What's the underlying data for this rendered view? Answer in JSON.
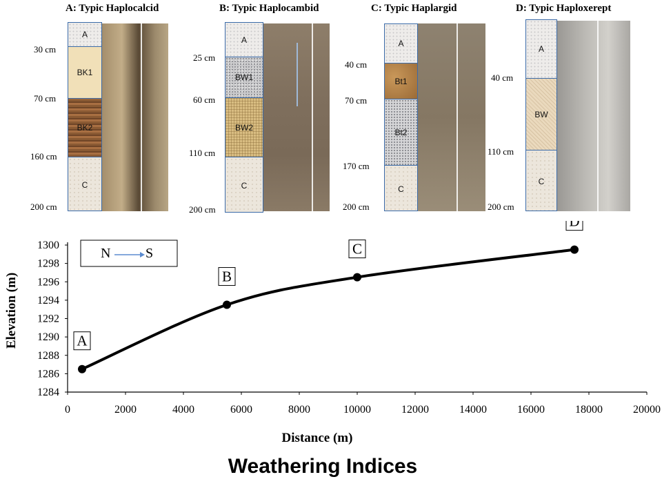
{
  "profiles": [
    {
      "title": "A: Typic Haplocalcid",
      "depths": [
        "30 cm",
        "70 cm",
        "160 cm",
        "200 cm"
      ],
      "horizons": [
        "A",
        "BK1",
        "BK2",
        "C"
      ],
      "photo_tone": "#8c7a5c"
    },
    {
      "title": "B:  Typic Haplocambid",
      "depths": [
        "25 cm",
        "60 cm",
        "110 cm",
        "200 cm"
      ],
      "horizons": [
        "A",
        "BW1",
        "BW2",
        "C"
      ],
      "photo_tone": "#7f6f5e"
    },
    {
      "title": "C:  Typic Haplargid",
      "depths": [
        "40 cm",
        "70 cm",
        "170 cm",
        "200 cm"
      ],
      "horizons": [
        "A",
        "Bt1",
        "Bt2",
        "C"
      ],
      "photo_tone": "#8d7f6c"
    },
    {
      "title": "D:  Typic Haploxerept",
      "depths": [
        "40 cm",
        "110 cm",
        "200 cm"
      ],
      "horizons": [
        "A",
        "BW",
        "C"
      ],
      "photo_tone": "#a5a39f"
    }
  ],
  "chart_data": {
    "type": "line",
    "xlabel": "Distance (m)",
    "ylabel": "Elevation (m)",
    "xlim": [
      0,
      20000
    ],
    "ylim": [
      1284,
      1300
    ],
    "xticks": [
      0,
      2000,
      4000,
      6000,
      8000,
      10000,
      12000,
      14000,
      16000,
      18000,
      20000
    ],
    "yticks": [
      1284,
      1286,
      1288,
      1290,
      1292,
      1294,
      1296,
      1298,
      1300
    ],
    "points": [
      {
        "label": "A",
        "x": 500,
        "y": 1286.5
      },
      {
        "label": "B",
        "x": 5500,
        "y": 1293.5
      },
      {
        "label": "C",
        "x": 10000,
        "y": 1296.5
      },
      {
        "label": "D",
        "x": 17500,
        "y": 1299.5
      }
    ],
    "grid": false,
    "legend_box": {
      "from": "N",
      "to": "S"
    }
  },
  "footer_title": "Weathering Indices",
  "colors": {
    "line": "#000000",
    "frame": "#3a6aa8",
    "arrow": "#5b8bd0"
  }
}
